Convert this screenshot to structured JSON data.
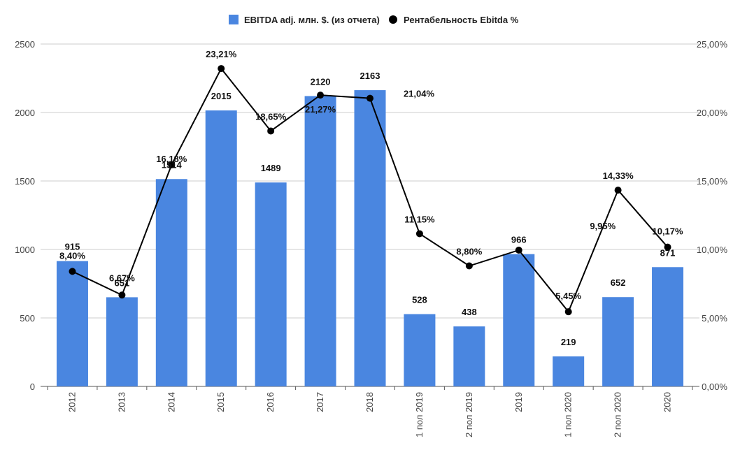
{
  "chart_data": {
    "type": "bar+line",
    "categories": [
      "2012",
      "2013",
      "2014",
      "2015",
      "2016",
      "2017",
      "2018",
      "1 пол 2019",
      "2 пол 2019",
      "2019",
      "1 пол 2020",
      "2 пол 2020",
      "2020"
    ],
    "series": [
      {
        "name": "EBITDA adj. млн. $. (из отчета)",
        "type": "bar",
        "axis": "left",
        "color": "#4a86e0",
        "values": [
          915,
          651,
          1514,
          2015,
          1489,
          2120,
          2163,
          528,
          438,
          966,
          219,
          652,
          871
        ],
        "labels": [
          "915",
          "651",
          "1514",
          "2015",
          "1489",
          "2120",
          "2163",
          "528",
          "438",
          "966",
          "219",
          "652",
          "871"
        ]
      },
      {
        "name": "Рентабельность Ebitda %",
        "type": "line",
        "axis": "right",
        "color": "#000000",
        "values": [
          8.4,
          6.67,
          16.18,
          23.21,
          18.65,
          21.27,
          21.04,
          11.15,
          8.8,
          9.95,
          5.45,
          14.33,
          10.17
        ],
        "labels": [
          "8,40%",
          "6,67%",
          "16,18%",
          "23,21%",
          "18,65%",
          "21,27%",
          "21,04%",
          "11,15%",
          "8,80%",
          "9,95%",
          "5,45%",
          "14,33%",
          "10,17%"
        ]
      }
    ],
    "y_left": {
      "ylim": [
        0,
        2500
      ],
      "ticks": [
        0,
        500,
        1000,
        1500,
        2000,
        2500
      ],
      "tick_labels": [
        "0",
        "500",
        "1000",
        "1500",
        "2000",
        "2500"
      ]
    },
    "y_right": {
      "ylim": [
        0,
        25
      ],
      "ticks": [
        0,
        5,
        10,
        15,
        20,
        25
      ],
      "tick_labels": [
        "0,00%",
        "5,00%",
        "10,00%",
        "15,00%",
        "20,00%",
        "25,00%"
      ]
    },
    "title": "",
    "xlabel": "",
    "ylabel": "",
    "grid": true,
    "legend_position": "top-center"
  }
}
